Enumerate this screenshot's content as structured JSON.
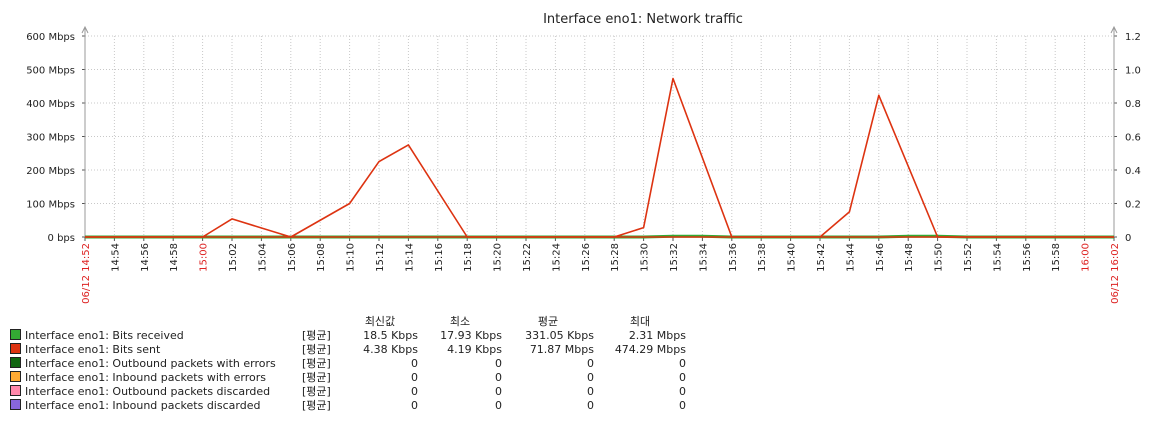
{
  "title": "Interface eno1: Network traffic",
  "chart_data": {
    "type": "line",
    "title": "Interface eno1: Network traffic",
    "time_start": "06/12 14:52",
    "time_end": "06/12 16:02",
    "y_left": {
      "ticks": [
        "0 bps",
        "100 Mbps",
        "200 Mbps",
        "300 Mbps",
        "400 Mbps",
        "500 Mbps",
        "600 Mbps"
      ],
      "range": [
        0,
        600
      ],
      "unit": "Mbps"
    },
    "y_right": {
      "ticks": [
        "0",
        "0.2",
        "0.4",
        "0.6",
        "0.8",
        "1.0",
        "1.2"
      ],
      "range": [
        0,
        1.2
      ]
    },
    "x_ticks": [
      {
        "label": "06/12 14:52",
        "minute": 0,
        "red": true
      },
      {
        "label": "14:54",
        "minute": 2
      },
      {
        "label": "14:56",
        "minute": 4
      },
      {
        "label": "14:58",
        "minute": 6
      },
      {
        "label": "15:00",
        "minute": 8,
        "red": true
      },
      {
        "label": "15:02",
        "minute": 10
      },
      {
        "label": "15:04",
        "minute": 12
      },
      {
        "label": "15:06",
        "minute": 14
      },
      {
        "label": "15:08",
        "minute": 16
      },
      {
        "label": "15:10",
        "minute": 18
      },
      {
        "label": "15:12",
        "minute": 20
      },
      {
        "label": "15:14",
        "minute": 22
      },
      {
        "label": "15:16",
        "minute": 24
      },
      {
        "label": "15:18",
        "minute": 26
      },
      {
        "label": "15:20",
        "minute": 28
      },
      {
        "label": "15:22",
        "minute": 30
      },
      {
        "label": "15:24",
        "minute": 32
      },
      {
        "label": "15:26",
        "minute": 34
      },
      {
        "label": "15:28",
        "minute": 36
      },
      {
        "label": "15:30",
        "minute": 38
      },
      {
        "label": "15:32",
        "minute": 40
      },
      {
        "label": "15:34",
        "minute": 42
      },
      {
        "label": "15:36",
        "minute": 44
      },
      {
        "label": "15:38",
        "minute": 46
      },
      {
        "label": "15:40",
        "minute": 48
      },
      {
        "label": "15:42",
        "minute": 50
      },
      {
        "label": "15:44",
        "minute": 52
      },
      {
        "label": "15:46",
        "minute": 54
      },
      {
        "label": "15:48",
        "minute": 56
      },
      {
        "label": "15:50",
        "minute": 58
      },
      {
        "label": "15:52",
        "minute": 60
      },
      {
        "label": "15:54",
        "minute": 62
      },
      {
        "label": "15:56",
        "minute": 64
      },
      {
        "label": "15:58",
        "minute": 66
      },
      {
        "label": "16:00",
        "minute": 68,
        "red": true
      },
      {
        "label": "06/12 16:02",
        "minute": 70,
        "red": true
      }
    ],
    "series": [
      {
        "name": "Interface eno1: Bits sent",
        "color": "#DD3311",
        "points": [
          [
            0,
            0
          ],
          [
            2,
            0
          ],
          [
            4,
            0
          ],
          [
            6,
            0
          ],
          [
            8,
            0
          ],
          [
            10,
            54
          ],
          [
            14,
            0
          ],
          [
            18,
            100
          ],
          [
            20,
            225
          ],
          [
            22,
            275
          ],
          [
            26,
            0
          ],
          [
            28,
            0
          ],
          [
            30,
            0
          ],
          [
            32,
            0
          ],
          [
            34,
            0
          ],
          [
            36,
            0
          ],
          [
            38,
            28
          ],
          [
            40,
            473
          ],
          [
            44,
            0
          ],
          [
            46,
            0
          ],
          [
            48,
            0
          ],
          [
            50,
            0
          ],
          [
            52,
            75
          ],
          [
            54,
            423
          ],
          [
            58,
            0
          ],
          [
            60,
            0
          ],
          [
            62,
            0
          ],
          [
            64,
            0
          ],
          [
            66,
            0
          ],
          [
            68,
            0
          ],
          [
            70,
            0
          ]
        ]
      },
      {
        "name": "Interface eno1: Bits received",
        "color": "#33AA33",
        "points": [
          [
            0,
            0
          ],
          [
            38,
            0
          ],
          [
            40,
            2.3
          ],
          [
            42,
            2.3
          ],
          [
            44,
            0
          ],
          [
            54,
            0
          ],
          [
            56,
            2.3
          ],
          [
            58,
            2.3
          ],
          [
            60,
            0
          ],
          [
            70,
            0
          ]
        ]
      }
    ]
  },
  "legend": {
    "headers": {
      "last": "최신값",
      "min": "최소",
      "avg": "평균",
      "max": "최대"
    },
    "rows": [
      {
        "color": "#33AA33",
        "name": "Interface eno1: Bits received",
        "func": "[평균]",
        "last": "18.5 Kbps",
        "min": "17.93 Kbps",
        "avg": "331.05 Kbps",
        "max": "2.31 Mbps"
      },
      {
        "color": "#DD3311",
        "name": "Interface eno1: Bits sent",
        "func": "[평균]",
        "last": "4.38 Kbps",
        "min": "4.19 Kbps",
        "avg": "71.87 Mbps",
        "max": "474.29 Mbps"
      },
      {
        "color": "#116611",
        "name": "Interface eno1: Outbound packets with errors",
        "func": "[평균]",
        "last": "0",
        "min": "0",
        "avg": "0",
        "max": "0"
      },
      {
        "color": "#FFAA33",
        "name": "Interface eno1: Inbound packets with errors",
        "func": "[평균]",
        "last": "0",
        "min": "0",
        "avg": "0",
        "max": "0"
      },
      {
        "color": "#FF88AA",
        "name": "Interface eno1: Outbound packets discarded",
        "func": "[평균]",
        "last": "0",
        "min": "0",
        "avg": "0",
        "max": "0"
      },
      {
        "color": "#8866DD",
        "name": "Interface eno1: Inbound packets discarded",
        "func": "[평균]",
        "last": "0",
        "min": "0",
        "avg": "0",
        "max": "0"
      }
    ]
  }
}
